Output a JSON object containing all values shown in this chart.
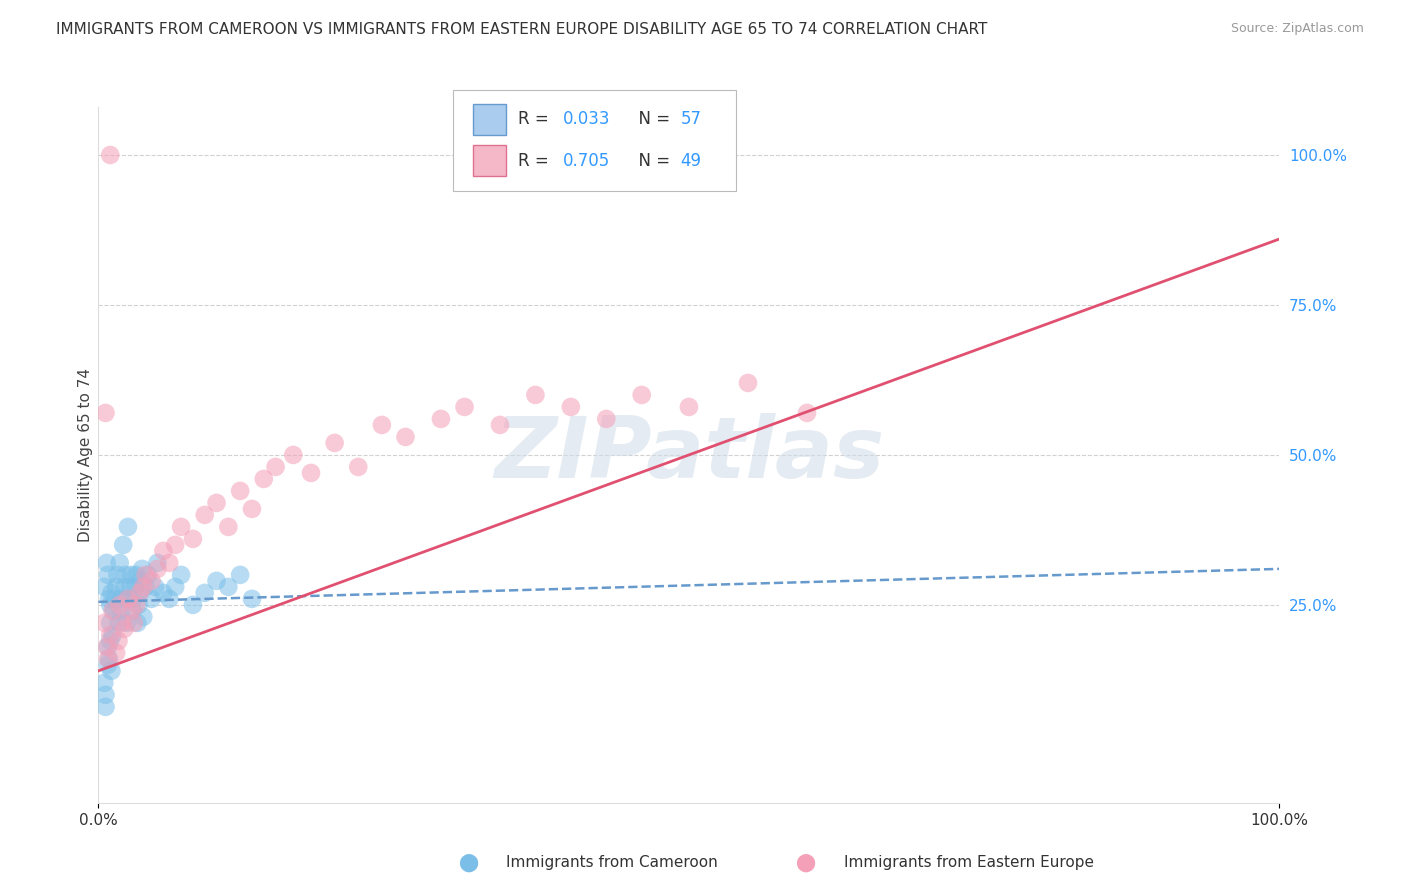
{
  "title": "IMMIGRANTS FROM CAMEROON VS IMMIGRANTS FROM EASTERN EUROPE DISABILITY AGE 65 TO 74 CORRELATION CHART",
  "source": "Source: ZipAtlas.com",
  "ylabel": "Disability Age 65 to 74",
  "watermark": "ZIPatlas",
  "series": [
    {
      "label": "Immigrants from Cameroon",
      "color": "#7bbfe8",
      "R": 0.033,
      "N": 57,
      "line_color": "#6699cc",
      "line_style": "--"
    },
    {
      "label": "Immigrants from Eastern Europe",
      "color": "#f4a0b8",
      "R": 0.705,
      "N": 49,
      "line_color": "#e05070",
      "line_style": "-"
    }
  ],
  "xlim": [
    0.0,
    1.0
  ],
  "ylim": [
    -0.08,
    1.08
  ],
  "right_yticks": [
    0.25,
    0.5,
    0.75,
    1.0
  ],
  "right_yticklabels": [
    "25.0%",
    "50.0%",
    "75.0%",
    "100.0%"
  ],
  "xticks": [
    0.0,
    1.0
  ],
  "xticklabels": [
    "0.0%",
    "100.0%"
  ],
  "background_color": "#ffffff",
  "grid_color": "#cccccc",
  "title_fontsize": 11,
  "legend_R_color": "#3399ff",
  "legend_N_color": "#3399ff",
  "cam_slope": 0.055,
  "cam_intercept": 0.255,
  "east_slope": 0.72,
  "east_intercept": 0.14,
  "cameroon_x": [
    0.005,
    0.007,
    0.008,
    0.009,
    0.01,
    0.01,
    0.011,
    0.012,
    0.013,
    0.014,
    0.015,
    0.016,
    0.017,
    0.018,
    0.019,
    0.02,
    0.021,
    0.022,
    0.023,
    0.024,
    0.025,
    0.026,
    0.027,
    0.028,
    0.029,
    0.03,
    0.031,
    0.032,
    0.033,
    0.034,
    0.035,
    0.036,
    0.037,
    0.038,
    0.04,
    0.042,
    0.045,
    0.048,
    0.05,
    0.055,
    0.06,
    0.065,
    0.07,
    0.08,
    0.09,
    0.1,
    0.11,
    0.12,
    0.13,
    0.005,
    0.006,
    0.006,
    0.008,
    0.008,
    0.009,
    0.01,
    0.011
  ],
  "cameroon_y": [
    0.28,
    0.32,
    0.3,
    0.26,
    0.22,
    0.25,
    0.27,
    0.2,
    0.24,
    0.26,
    0.28,
    0.3,
    0.22,
    0.32,
    0.24,
    0.26,
    0.35,
    0.28,
    0.3,
    0.22,
    0.38,
    0.26,
    0.28,
    0.3,
    0.24,
    0.26,
    0.28,
    0.3,
    0.22,
    0.25,
    0.27,
    0.29,
    0.31,
    0.23,
    0.28,
    0.3,
    0.26,
    0.28,
    0.32,
    0.27,
    0.26,
    0.28,
    0.3,
    0.25,
    0.27,
    0.29,
    0.28,
    0.3,
    0.26,
    0.12,
    0.1,
    0.08,
    0.15,
    0.18,
    0.16,
    0.19,
    0.14
  ],
  "eastern_x": [
    0.005,
    0.007,
    0.008,
    0.01,
    0.012,
    0.015,
    0.017,
    0.018,
    0.02,
    0.022,
    0.025,
    0.028,
    0.03,
    0.032,
    0.035,
    0.038,
    0.04,
    0.045,
    0.05,
    0.055,
    0.06,
    0.065,
    0.07,
    0.08,
    0.09,
    0.1,
    0.11,
    0.12,
    0.13,
    0.14,
    0.15,
    0.165,
    0.18,
    0.2,
    0.22,
    0.24,
    0.26,
    0.29,
    0.31,
    0.34,
    0.37,
    0.4,
    0.43,
    0.46,
    0.5,
    0.55,
    0.6,
    0.006,
    0.01
  ],
  "eastern_y": [
    0.22,
    0.18,
    0.16,
    0.2,
    0.24,
    0.17,
    0.19,
    0.25,
    0.22,
    0.21,
    0.26,
    0.24,
    0.22,
    0.25,
    0.27,
    0.28,
    0.3,
    0.29,
    0.31,
    0.34,
    0.32,
    0.35,
    0.38,
    0.36,
    0.4,
    0.42,
    0.38,
    0.44,
    0.41,
    0.46,
    0.48,
    0.5,
    0.47,
    0.52,
    0.48,
    0.55,
    0.53,
    0.56,
    0.58,
    0.55,
    0.6,
    0.58,
    0.56,
    0.6,
    0.58,
    0.62,
    0.57,
    0.57,
    1.0
  ]
}
